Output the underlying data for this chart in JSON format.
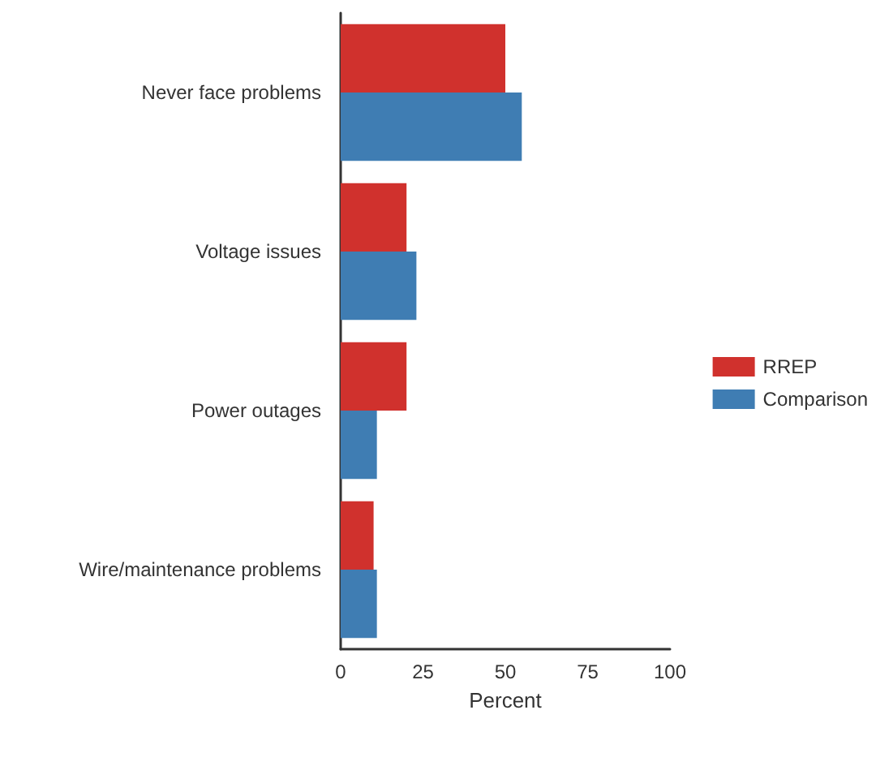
{
  "chart_data": {
    "type": "bar",
    "orientation": "horizontal",
    "xlabel": "Percent",
    "categories": [
      "Never face problems",
      "Voltage issues",
      "Power outages",
      "Wire/maintenance problems"
    ],
    "series": [
      {
        "name": "RREP",
        "color": "#d0312d",
        "values": [
          50,
          20,
          20,
          10
        ]
      },
      {
        "name": "Comparison",
        "color": "#3f7db3",
        "values": [
          55,
          23,
          11,
          11
        ]
      }
    ],
    "xlim": [
      0,
      100
    ],
    "xticks": [
      0,
      25,
      50,
      75,
      100
    ],
    "grid": false,
    "legend": "right"
  }
}
